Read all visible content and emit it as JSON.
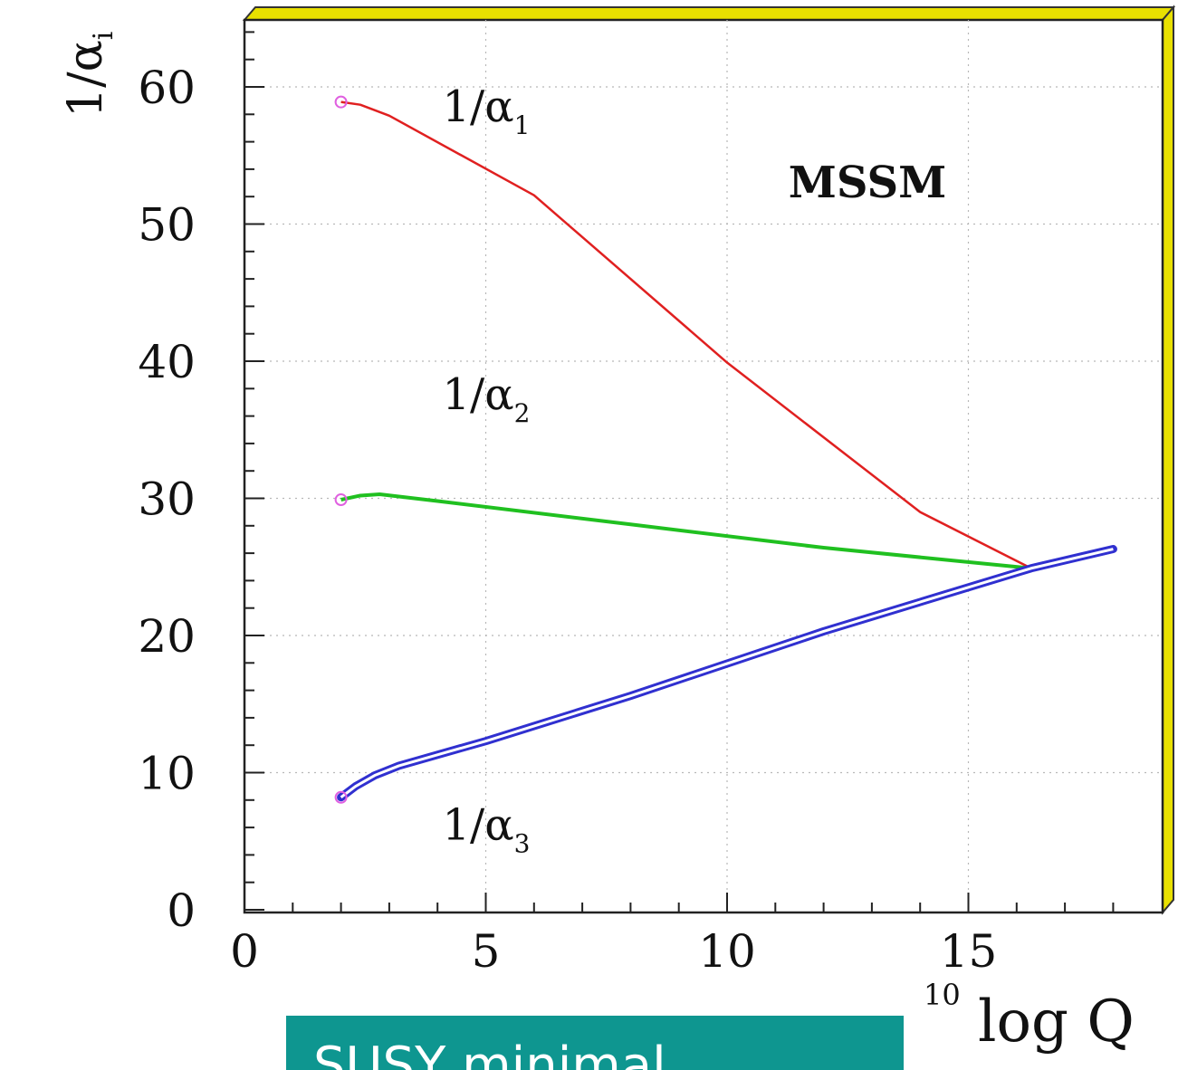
{
  "chart_data": {
    "type": "line",
    "title": "",
    "annotation": "MSSM",
    "xlabel": {
      "superscript": "10",
      "text": "log Q"
    },
    "ylabel": {
      "main": "1/α",
      "subscript": "i"
    },
    "xlim": [
      0,
      18.5
    ],
    "ylim": [
      0,
      65
    ],
    "xticks": [
      0,
      5,
      10,
      15
    ],
    "yticks": [
      0,
      10,
      20,
      30,
      40,
      50,
      60
    ],
    "grid": true,
    "series": [
      {
        "name": "1/α",
        "subscript": "1",
        "color": "#e02020",
        "double_line": false,
        "x": [
          2.0,
          2.4,
          3.0,
          6.0,
          10.0,
          14.0,
          16.3
        ],
        "y": [
          58.9,
          58.7,
          57.9,
          52.1,
          39.9,
          29.0,
          24.9
        ]
      },
      {
        "name": "1/α",
        "subscript": "2",
        "color": "#20c020",
        "double_line": false,
        "x": [
          2.0,
          2.4,
          2.8,
          4.0,
          8.0,
          12.0,
          16.3
        ],
        "y": [
          29.9,
          30.2,
          30.3,
          29.8,
          28.1,
          26.4,
          24.9
        ]
      },
      {
        "name": "1/α",
        "subscript": "3",
        "color": "#3030d0",
        "double_line": true,
        "x": [
          2.0,
          2.3,
          2.7,
          3.2,
          5.0,
          8.0,
          12.0,
          16.3,
          18.0
        ],
        "y": [
          8.2,
          9.0,
          9.8,
          10.5,
          12.3,
          15.6,
          20.3,
          24.9,
          26.3
        ]
      }
    ],
    "markers": [
      {
        "x": 2.0,
        "y": 58.9
      },
      {
        "x": 2.0,
        "y": 29.9
      },
      {
        "x": 2.0,
        "y": 8.2
      }
    ],
    "label_positions_data": [
      {
        "series": 0,
        "x": 4.1,
        "y": 57.5
      },
      {
        "series": 1,
        "x": 4.1,
        "y": 36.5
      },
      {
        "series": 2,
        "x": 4.1,
        "y": 5.1
      }
    ],
    "colors": {
      "frame_shadow": "#e8e000",
      "marker": "#e060e0"
    }
  },
  "banner": {
    "text": "SUSY minimal",
    "color": "#0e9690"
  }
}
